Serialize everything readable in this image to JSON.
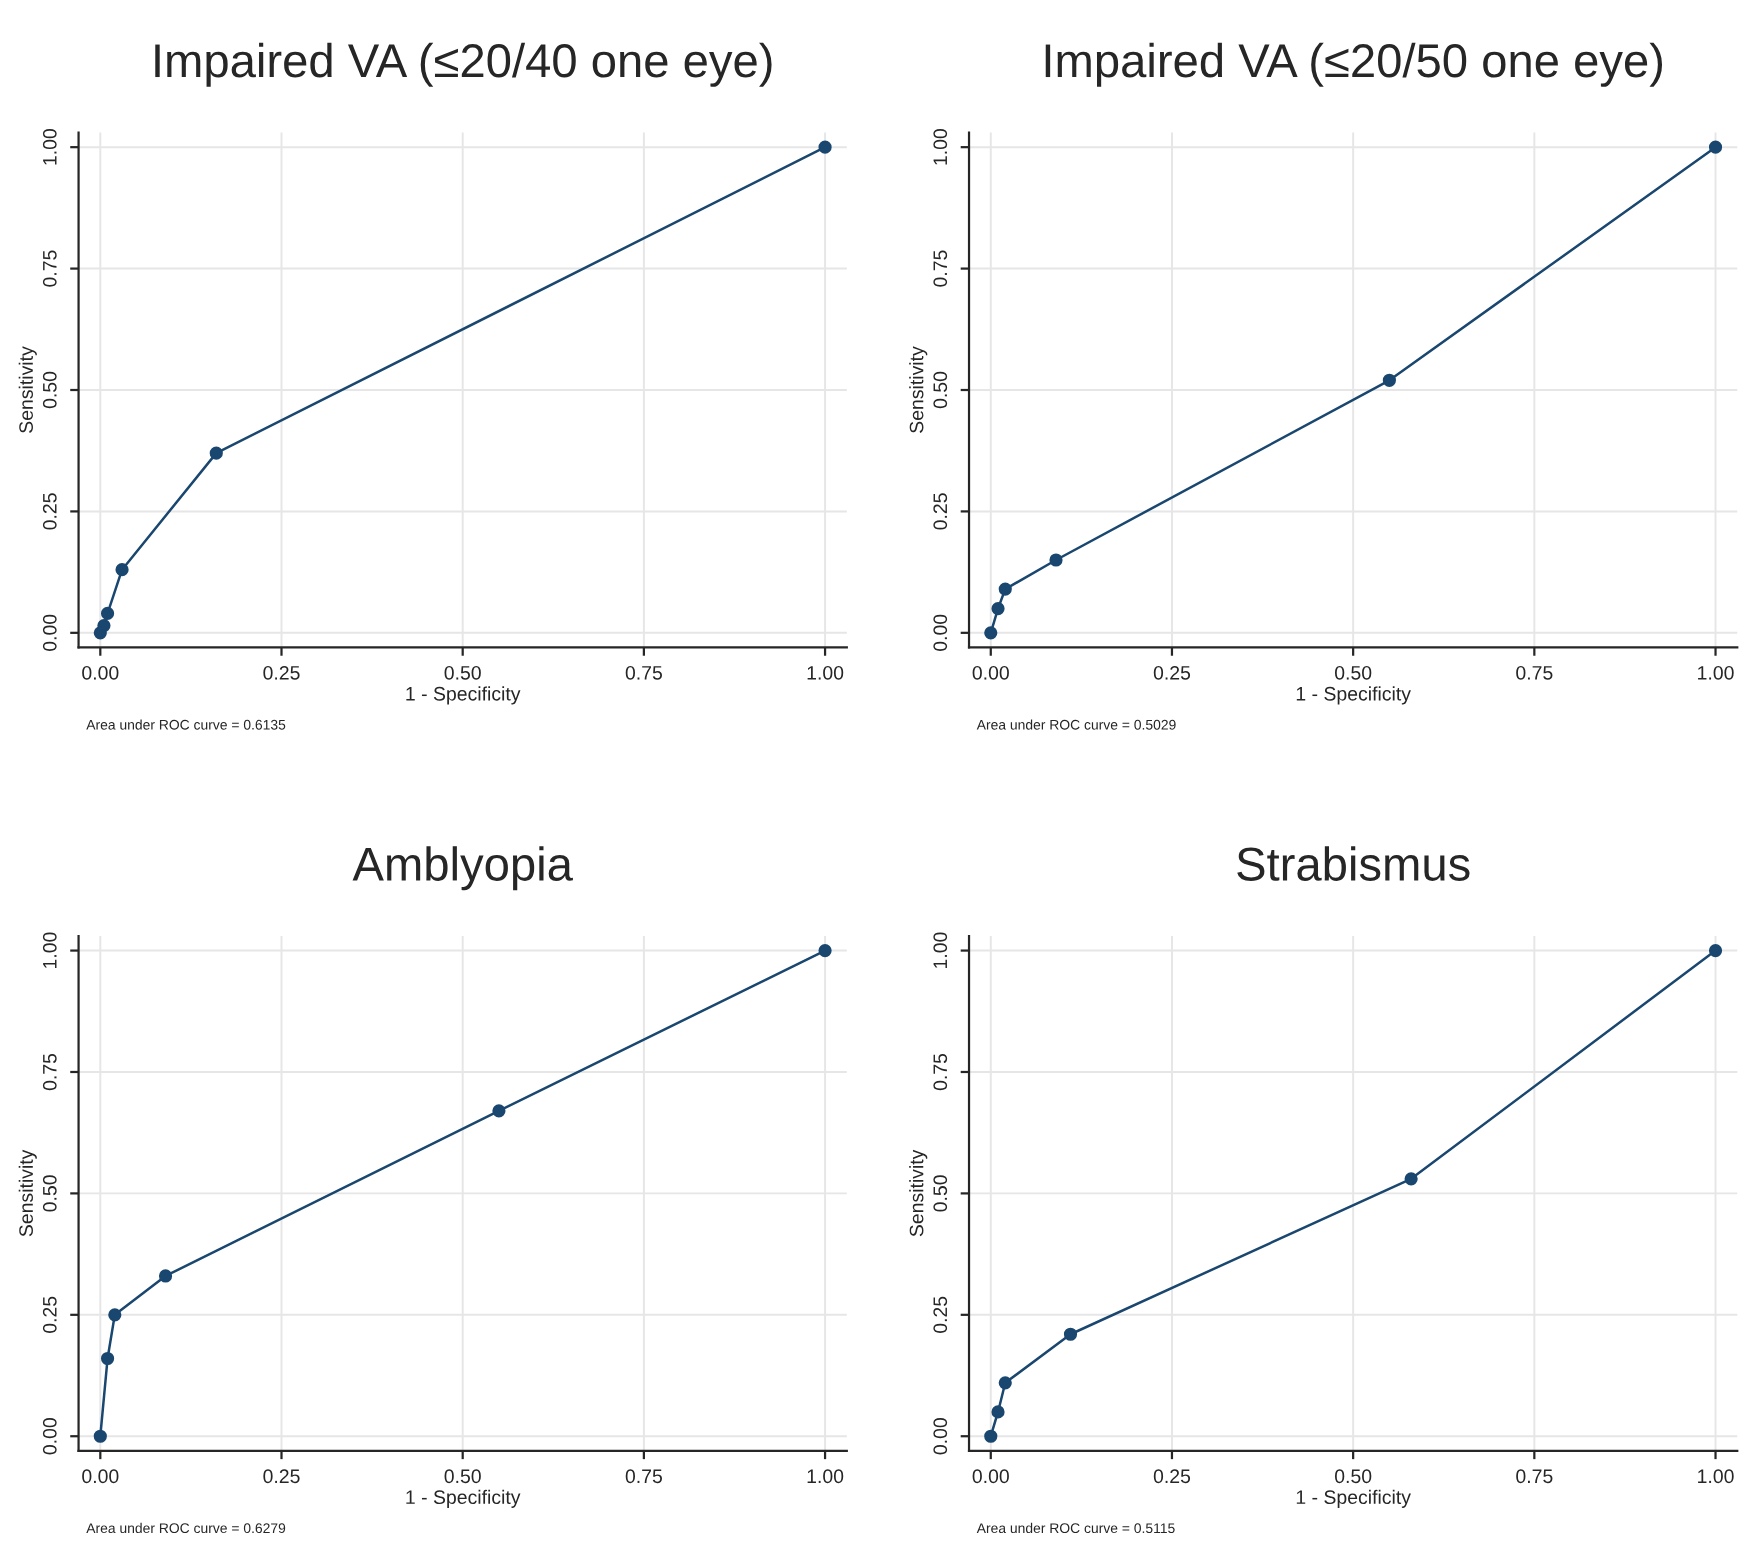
{
  "chart_data": [
    {
      "type": "line",
      "title": "Impaired VA (≤20/40 one eye)",
      "xlabel": "1 - Specificity",
      "ylabel": "Sensitivity",
      "xlim": [
        -0.03,
        1.03
      ],
      "ylim": [
        -0.03,
        1.03
      ],
      "xticks": [
        {
          "value": 0,
          "label": "0.00"
        },
        {
          "value": 0.25,
          "label": "0.25"
        },
        {
          "value": 0.5,
          "label": "0.50"
        },
        {
          "value": 0.75,
          "label": "0.75"
        },
        {
          "value": 1,
          "label": "1.00"
        }
      ],
      "yticks": [
        {
          "value": 0,
          "label": "0.00"
        },
        {
          "value": 0.25,
          "label": "0.25"
        },
        {
          "value": 0.5,
          "label": "0.50"
        },
        {
          "value": 0.75,
          "label": "0.75"
        },
        {
          "value": 1,
          "label": "1.00"
        }
      ],
      "grid": true,
      "marker": "circle",
      "line_style": "solid",
      "annotations": [
        "Area under ROC curve = 0.6135"
      ],
      "series": [
        {
          "color": "#1a476f",
          "x": [
            0,
            0.005,
            0.01,
            0.03,
            0.16,
            1
          ],
          "values": [
            0,
            0.015,
            0.04,
            0.13,
            0.37,
            1
          ]
        }
      ]
    },
    {
      "type": "line",
      "title": "Impaired VA (≤20/50 one eye)",
      "xlabel": "1 - Specificity",
      "ylabel": "Sensitivity",
      "xlim": [
        -0.03,
        1.03
      ],
      "ylim": [
        -0.03,
        1.03
      ],
      "xticks": [
        {
          "value": 0,
          "label": "0.00"
        },
        {
          "value": 0.25,
          "label": "0.25"
        },
        {
          "value": 0.5,
          "label": "0.50"
        },
        {
          "value": 0.75,
          "label": "0.75"
        },
        {
          "value": 1,
          "label": "1.00"
        }
      ],
      "yticks": [
        {
          "value": 0,
          "label": "0.00"
        },
        {
          "value": 0.25,
          "label": "0.25"
        },
        {
          "value": 0.5,
          "label": "0.50"
        },
        {
          "value": 0.75,
          "label": "0.75"
        },
        {
          "value": 1,
          "label": "1.00"
        }
      ],
      "grid": true,
      "marker": "circle",
      "line_style": "solid",
      "annotations": [
        "Area under ROC curve = 0.5029"
      ],
      "series": [
        {
          "color": "#1a476f",
          "x": [
            0,
            0.01,
            0.02,
            0.09,
            0.55,
            1
          ],
          "values": [
            0,
            0.05,
            0.09,
            0.15,
            0.52,
            1
          ]
        }
      ]
    },
    {
      "type": "line",
      "title": "Amblyopia",
      "xlabel": "1 - Specificity",
      "ylabel": "Sensitivity",
      "xlim": [
        -0.03,
        1.03
      ],
      "ylim": [
        -0.03,
        1.03
      ],
      "xticks": [
        {
          "value": 0,
          "label": "0.00"
        },
        {
          "value": 0.25,
          "label": "0.25"
        },
        {
          "value": 0.5,
          "label": "0.50"
        },
        {
          "value": 0.75,
          "label": "0.75"
        },
        {
          "value": 1,
          "label": "1.00"
        }
      ],
      "yticks": [
        {
          "value": 0,
          "label": "0.00"
        },
        {
          "value": 0.25,
          "label": "0.25"
        },
        {
          "value": 0.5,
          "label": "0.50"
        },
        {
          "value": 0.75,
          "label": "0.75"
        },
        {
          "value": 1,
          "label": "1.00"
        }
      ],
      "grid": true,
      "marker": "circle",
      "line_style": "solid",
      "annotations": [
        "Area under ROC curve = 0.6279"
      ],
      "series": [
        {
          "color": "#1a476f",
          "x": [
            0,
            0.01,
            0.02,
            0.09,
            0.55,
            1
          ],
          "values": [
            0,
            0.16,
            0.25,
            0.33,
            0.67,
            1
          ]
        }
      ]
    },
    {
      "type": "line",
      "title": "Strabismus",
      "xlabel": "1 - Specificity",
      "ylabel": "Sensitivity",
      "xlim": [
        -0.03,
        1.03
      ],
      "ylim": [
        -0.03,
        1.03
      ],
      "xticks": [
        {
          "value": 0,
          "label": "0.00"
        },
        {
          "value": 0.25,
          "label": "0.25"
        },
        {
          "value": 0.5,
          "label": "0.50"
        },
        {
          "value": 0.75,
          "label": "0.75"
        },
        {
          "value": 1,
          "label": "1.00"
        }
      ],
      "yticks": [
        {
          "value": 0,
          "label": "0.00"
        },
        {
          "value": 0.25,
          "label": "0.25"
        },
        {
          "value": 0.5,
          "label": "0.50"
        },
        {
          "value": 0.75,
          "label": "0.75"
        },
        {
          "value": 1,
          "label": "1.00"
        }
      ],
      "grid": true,
      "marker": "circle",
      "line_style": "solid",
      "annotations": [
        "Area under ROC curve = 0.5115"
      ],
      "series": [
        {
          "color": "#1a476f",
          "x": [
            0,
            0.01,
            0.02,
            0.11,
            0.58,
            1
          ],
          "values": [
            0,
            0.05,
            0.11,
            0.21,
            0.53,
            1
          ]
        }
      ]
    }
  ]
}
